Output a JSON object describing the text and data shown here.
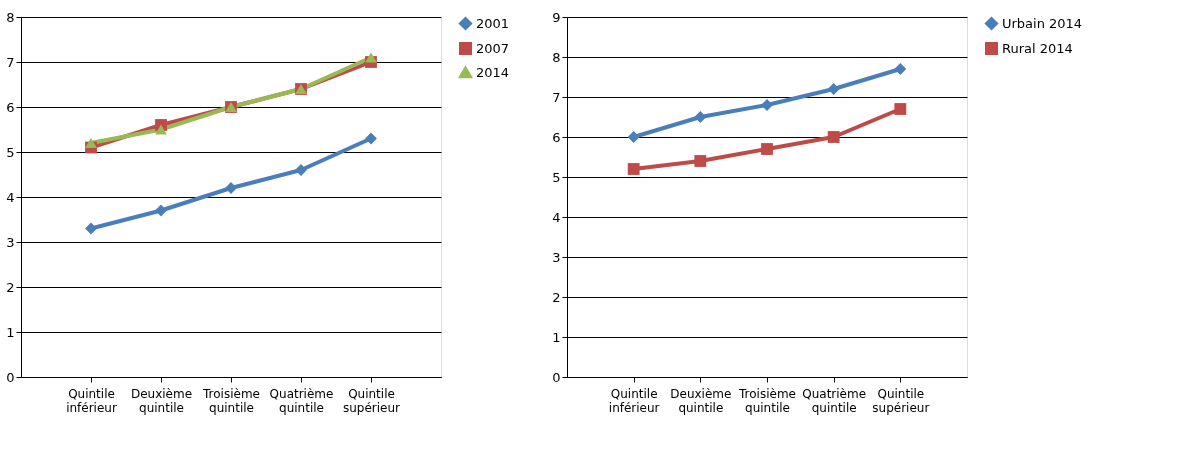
{
  "chart_data": [
    {
      "type": "line",
      "categories": [
        "Quintile inférieur",
        "Deuxième quintile",
        "Troisième quintile",
        "Quatrième quintile",
        "Quintile supérieur"
      ],
      "ylim": [
        0,
        8
      ],
      "yticks": [
        0,
        1,
        2,
        3,
        4,
        5,
        6,
        7,
        8
      ],
      "grid": "y",
      "legend": "right",
      "series": [
        {
          "name": "2001",
          "color": "#4a7ebb",
          "marker": "diamond",
          "values": [
            3.3,
            3.7,
            4.2,
            4.6,
            5.3
          ]
        },
        {
          "name": "2007",
          "color": "#be4b48",
          "marker": "square",
          "values": [
            5.1,
            5.6,
            6.0,
            6.4,
            7.0
          ]
        },
        {
          "name": "2014",
          "color": "#98b954",
          "marker": "triangle",
          "values": [
            5.2,
            5.5,
            6.0,
            6.4,
            7.1
          ]
        }
      ]
    },
    {
      "type": "line",
      "categories": [
        "Quintile inférieur",
        "Deuxième quintile",
        "Troisième quintile",
        "Quatrième quintile",
        "Quintile supérieur"
      ],
      "ylim": [
        0,
        9
      ],
      "yticks": [
        0,
        1,
        2,
        3,
        4,
        5,
        6,
        7,
        8,
        9
      ],
      "grid": "y",
      "legend": "right",
      "series": [
        {
          "name": "Urbain 2014",
          "color": "#4a7ebb",
          "marker": "diamond",
          "values": [
            6.0,
            6.5,
            6.8,
            7.2,
            7.7
          ]
        },
        {
          "name": "Rural 2014",
          "color": "#be4b48",
          "marker": "square",
          "values": [
            5.2,
            5.4,
            5.7,
            6.0,
            6.7
          ]
        }
      ]
    }
  ]
}
